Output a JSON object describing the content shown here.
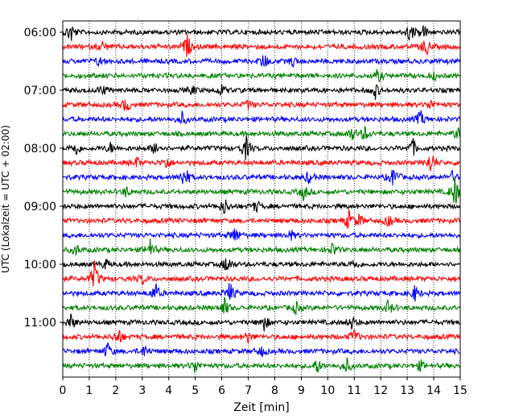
{
  "chart_data": {
    "type": "line",
    "title": "",
    "xlabel": "Zeit  [min]",
    "ylabel": "UTC (Lokalzeit = UTC + 02:00)",
    "xlim": [
      0,
      15
    ],
    "x_ticks": [
      0,
      1,
      2,
      3,
      4,
      5,
      6,
      7,
      8,
      9,
      10,
      11,
      12,
      13,
      14,
      15
    ],
    "x_tick_labels": [
      "0",
      "1",
      "2",
      "3",
      "4",
      "5",
      "6",
      "7",
      "8",
      "9",
      "10",
      "11",
      "12",
      "13",
      "14",
      "15"
    ],
    "y_tick_labels": [
      "06:00",
      "07:00",
      "08:00",
      "09:00",
      "10:00",
      "11:00"
    ],
    "grid_vertical": true,
    "grid_style": "dotted",
    "trace_colors": [
      "#000000",
      "#ff0000",
      "#0000ff",
      "#008000"
    ],
    "series": [
      {
        "start": "06:00",
        "color": "#000000",
        "events": [
          [
            0.3,
            14
          ],
          [
            13.1,
            12
          ],
          [
            13.6,
            9
          ]
        ]
      },
      {
        "start": "06:15",
        "color": "#ff0000",
        "events": [
          [
            1.5,
            6
          ],
          [
            4.7,
            14
          ],
          [
            13.7,
            13
          ]
        ]
      },
      {
        "start": "06:30",
        "color": "#0000ff",
        "events": [
          [
            1.4,
            6
          ],
          [
            7.6,
            10
          ],
          [
            8.7,
            6
          ]
        ]
      },
      {
        "start": "06:45",
        "color": "#008000",
        "events": [
          [
            11.9,
            8
          ],
          [
            14.0,
            5
          ]
        ]
      },
      {
        "start": "07:00",
        "color": "#000000",
        "events": [
          [
            1.5,
            6
          ],
          [
            4.9,
            5
          ],
          [
            6.0,
            7
          ],
          [
            11.8,
            9
          ]
        ]
      },
      {
        "start": "07:15",
        "color": "#ff0000",
        "events": [
          [
            2.4,
            10
          ],
          [
            7.0,
            5
          ],
          [
            13.9,
            6
          ]
        ]
      },
      {
        "start": "07:30",
        "color": "#0000ff",
        "events": [
          [
            4.5,
            8
          ],
          [
            13.5,
            10
          ]
        ]
      },
      {
        "start": "07:45",
        "color": "#008000",
        "events": [
          [
            10.9,
            8
          ],
          [
            11.4,
            9
          ],
          [
            14.9,
            7
          ]
        ]
      },
      {
        "start": "08:00",
        "color": "#000000",
        "events": [
          [
            0.5,
            9
          ],
          [
            1.8,
            6
          ],
          [
            3.5,
            9
          ],
          [
            6.9,
            16
          ],
          [
            13.2,
            12
          ]
        ]
      },
      {
        "start": "08:15",
        "color": "#ff0000",
        "events": [
          [
            2.8,
            6
          ],
          [
            3.9,
            8
          ],
          [
            13.9,
            14
          ]
        ]
      },
      {
        "start": "08:30",
        "color": "#0000ff",
        "events": [
          [
            4.6,
            16
          ],
          [
            9.3,
            8
          ],
          [
            12.5,
            14
          ],
          [
            14.7,
            6
          ]
        ]
      },
      {
        "start": "08:45",
        "color": "#008000",
        "events": [
          [
            2.4,
            6
          ],
          [
            9.1,
            10
          ],
          [
            14.8,
            20
          ]
        ]
      },
      {
        "start": "09:00",
        "color": "#000000",
        "events": [
          [
            6.1,
            10
          ],
          [
            7.3,
            7
          ]
        ]
      },
      {
        "start": "09:15",
        "color": "#ff0000",
        "events": [
          [
            10.8,
            12
          ],
          [
            11.2,
            8
          ],
          [
            12.3,
            7
          ]
        ]
      },
      {
        "start": "09:30",
        "color": "#0000ff",
        "events": [
          [
            6.5,
            11
          ],
          [
            8.6,
            6
          ]
        ]
      },
      {
        "start": "09:45",
        "color": "#008000",
        "events": [
          [
            0.5,
            7
          ],
          [
            3.3,
            12
          ],
          [
            10.2,
            9
          ]
        ]
      },
      {
        "start": "10:00",
        "color": "#000000",
        "events": [
          [
            6.2,
            12
          ],
          [
            1.6,
            6
          ],
          [
            11.0,
            6
          ]
        ]
      },
      {
        "start": "10:15",
        "color": "#ff0000",
        "events": [
          [
            1.2,
            20
          ],
          [
            3.0,
            6
          ]
        ]
      },
      {
        "start": "10:30",
        "color": "#0000ff",
        "events": [
          [
            3.5,
            12
          ],
          [
            6.3,
            14
          ],
          [
            13.3,
            10
          ]
        ]
      },
      {
        "start": "10:45",
        "color": "#008000",
        "events": [
          [
            6.1,
            12
          ],
          [
            12.3,
            9
          ],
          [
            8.8,
            7
          ]
        ]
      },
      {
        "start": "11:00",
        "color": "#000000",
        "events": [
          [
            0.3,
            10
          ],
          [
            7.6,
            10
          ],
          [
            10.9,
            8
          ]
        ]
      },
      {
        "start": "11:15",
        "color": "#ff0000",
        "events": [
          [
            2.1,
            11
          ],
          [
            7.0,
            7
          ],
          [
            11.0,
            9
          ]
        ]
      },
      {
        "start": "11:30",
        "color": "#0000ff",
        "events": [
          [
            1.7,
            10
          ],
          [
            3.1,
            8
          ],
          [
            7.5,
            6
          ]
        ]
      },
      {
        "start": "11:45",
        "color": "#008000",
        "events": [
          [
            5.0,
            9
          ],
          [
            9.6,
            9
          ],
          [
            10.7,
            10
          ],
          [
            13.5,
            6
          ]
        ]
      }
    ]
  }
}
